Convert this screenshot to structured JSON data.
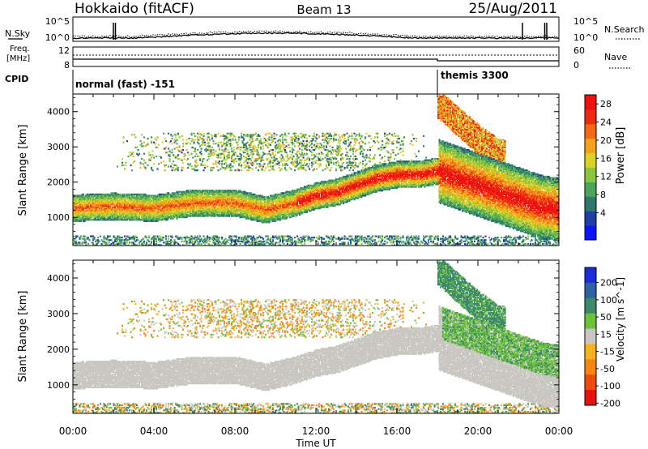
{
  "header": {
    "station": "Hokkaido (fitACF)",
    "beam": "Beam 13",
    "date": "25/Aug/2011"
  },
  "top_panels": {
    "nsky_label": "N.Sky",
    "nsearch_label": "N.Search",
    "nsky_ticks": [
      "10^5",
      "10^0"
    ],
    "nsearch_ticks": [
      "10^5",
      "10^0"
    ],
    "freq_label_line1": "Freq.",
    "freq_label_line2": "[MHz]",
    "freq_ticks": [
      "12",
      "8"
    ],
    "nave_label": "Nave",
    "nave_ticks": [
      "60",
      "0"
    ],
    "cpid_label": "CPID",
    "cpid_segments": [
      {
        "label": "normal (fast) -151",
        "start_hour": 0
      },
      {
        "label": "themis 3300",
        "start_hour": 18
      }
    ]
  },
  "chart_data": [
    {
      "type": "heatmap",
      "title": "",
      "xlabel": "Time UT",
      "ylabel": "Slant Range [km]",
      "xlim": [
        0,
        24
      ],
      "ylim": [
        200,
        4500
      ],
      "x_tick_labels": [
        "00:00",
        "04:00",
        "08:00",
        "12:00",
        "16:00",
        "20:00",
        "00:00"
      ],
      "y_ticks": [
        1000,
        2000,
        3000,
        4000
      ],
      "colorbar": {
        "label": "Power [dB]",
        "tick_labels": [
          "4",
          "8",
          "12",
          "16",
          "20",
          "24",
          "28"
        ],
        "colors": [
          "#0a14ff",
          "#1e3fa8",
          "#2e7a6a",
          "#49a65b",
          "#8cc63e",
          "#d8d226",
          "#f5a21a",
          "#f26a12",
          "#ee2a10",
          "#f01010"
        ]
      },
      "echo_bands": [
        {
          "t": [
            0,
            2,
            4,
            6,
            8,
            9.5,
            11,
            12,
            13,
            14,
            15,
            16,
            17,
            18,
            19,
            20,
            21,
            22,
            23,
            24
          ],
          "range_km": [
            1250,
            1300,
            1250,
            1400,
            1400,
            1200,
            1400,
            1600,
            1700,
            1900,
            2100,
            2200,
            2200,
            2300,
            2100,
            1900,
            1700,
            1500,
            1300,
            1200
          ],
          "power_db": 26
        },
        {
          "t": [
            18,
            19,
            20,
            21
          ],
          "range_km": [
            4200,
            3700,
            3200,
            2800
          ],
          "power_db": 24
        }
      ]
    },
    {
      "type": "heatmap",
      "title": "",
      "xlabel": "Time UT",
      "ylabel": "Slant Range [km]",
      "xlim": [
        0,
        24
      ],
      "ylim": [
        200,
        4500
      ],
      "x_tick_labels": [
        "00:00",
        "04:00",
        "08:00",
        "12:00",
        "16:00",
        "20:00",
        "00:00"
      ],
      "y_ticks": [
        1000,
        2000,
        3000,
        4000
      ],
      "colorbar": {
        "label": "Velocity [m s^-1]",
        "tick_labels": [
          "200",
          "100",
          "50",
          "15",
          "-15",
          "-50",
          "-100",
          "-200"
        ],
        "colors": [
          "#1d2cd8",
          "#2d62a8",
          "#3c8a6a",
          "#6cc23a",
          "#c8c8c0",
          "#f6b41c",
          "#f5870f",
          "#ef4a10",
          "#e81010"
        ]
      },
      "echo_bands": [
        {
          "t": [
            0,
            2,
            4,
            6,
            8,
            9.5,
            11,
            12,
            13,
            14,
            15,
            16,
            17,
            18,
            19,
            20,
            21,
            22,
            23,
            24
          ],
          "range_km": [
            1250,
            1300,
            1250,
            1400,
            1400,
            1200,
            1400,
            1600,
            1700,
            1900,
            2100,
            2200,
            2200,
            2300,
            2100,
            1900,
            1700,
            1500,
            1300,
            1200
          ],
          "velocity_ms": 0
        },
        {
          "t": [
            18,
            19,
            20,
            21
          ],
          "range_km": [
            4200,
            3700,
            3200,
            2800
          ],
          "velocity_ms": 40
        }
      ]
    }
  ]
}
